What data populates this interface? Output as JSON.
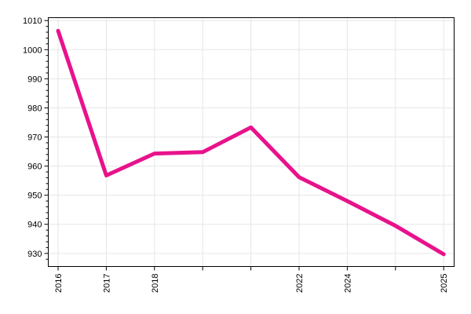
{
  "chart_data": {
    "type": "line",
    "title": "",
    "xlabel": "",
    "ylabel": "",
    "ylim": [
      925.5,
      1011
    ],
    "x_tick_labels": [
      "2016",
      "2017",
      "2018",
      "",
      "",
      "2022",
      "2024",
      "",
      "2025"
    ],
    "y_ticks": [
      930,
      940,
      950,
      960,
      970,
      980,
      990,
      1000,
      1010
    ],
    "grid": true,
    "legend": "none",
    "series": [
      {
        "color": "#e8128c",
        "values": [
          1006.5,
          956.8,
          964.3,
          964.8,
          973.3,
          956.2,
          948.0,
          939.5,
          929.7
        ]
      }
    ]
  }
}
